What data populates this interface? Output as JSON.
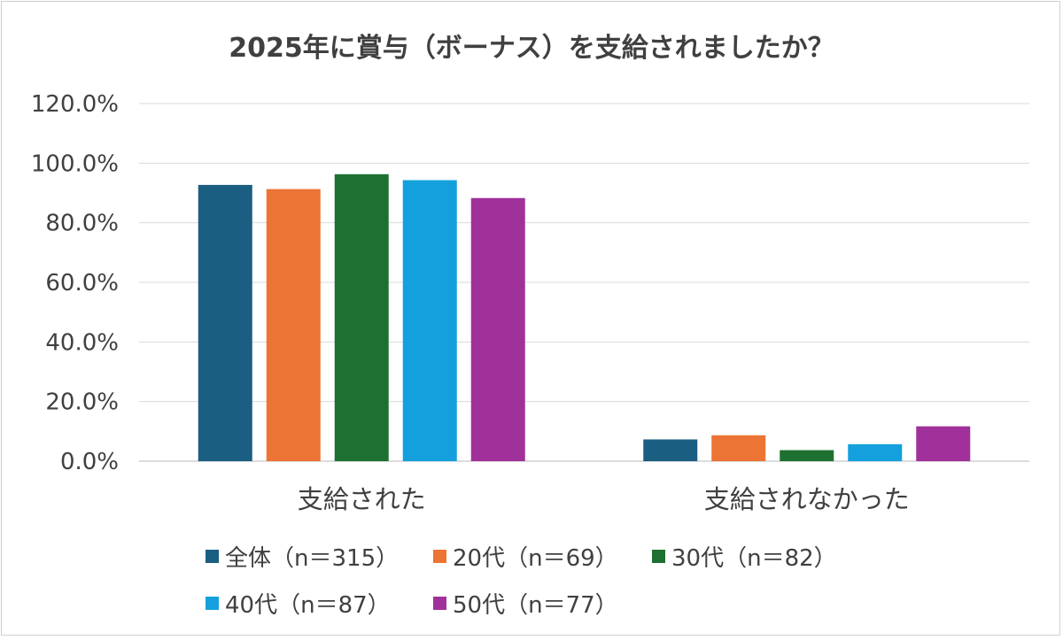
{
  "chart_data": {
    "type": "bar",
    "title": "2025年に賞与（ボーナス）を支給されましたか？",
    "categories": [
      "支給された",
      "支給されなかった"
    ],
    "series": [
      {
        "name": "全体（n＝315）",
        "color": "#1a5e82",
        "values": [
          92.7,
          7.3
        ]
      },
      {
        "name": "20代（n＝69）",
        "color": "#ec7434",
        "values": [
          91.3,
          8.7
        ]
      },
      {
        "name": "30代（n＝82）",
        "color": "#1e7030",
        "values": [
          96.3,
          3.7
        ]
      },
      {
        "name": "40代（n＝87）",
        "color": "#14a0dc",
        "values": [
          94.3,
          5.7
        ]
      },
      {
        "name": "50代（n＝77）",
        "color": "#a0319a",
        "values": [
          88.3,
          11.7
        ]
      }
    ],
    "ylim": [
      0,
      120
    ],
    "yticks": [
      "0.0%",
      "20.0%",
      "40.0%",
      "60.0%",
      "80.0%",
      "100.0%",
      "120.0%"
    ],
    "ytick_values": [
      0,
      20,
      40,
      60,
      80,
      100,
      120
    ],
    "grid": true,
    "legend_position": "bottom"
  }
}
